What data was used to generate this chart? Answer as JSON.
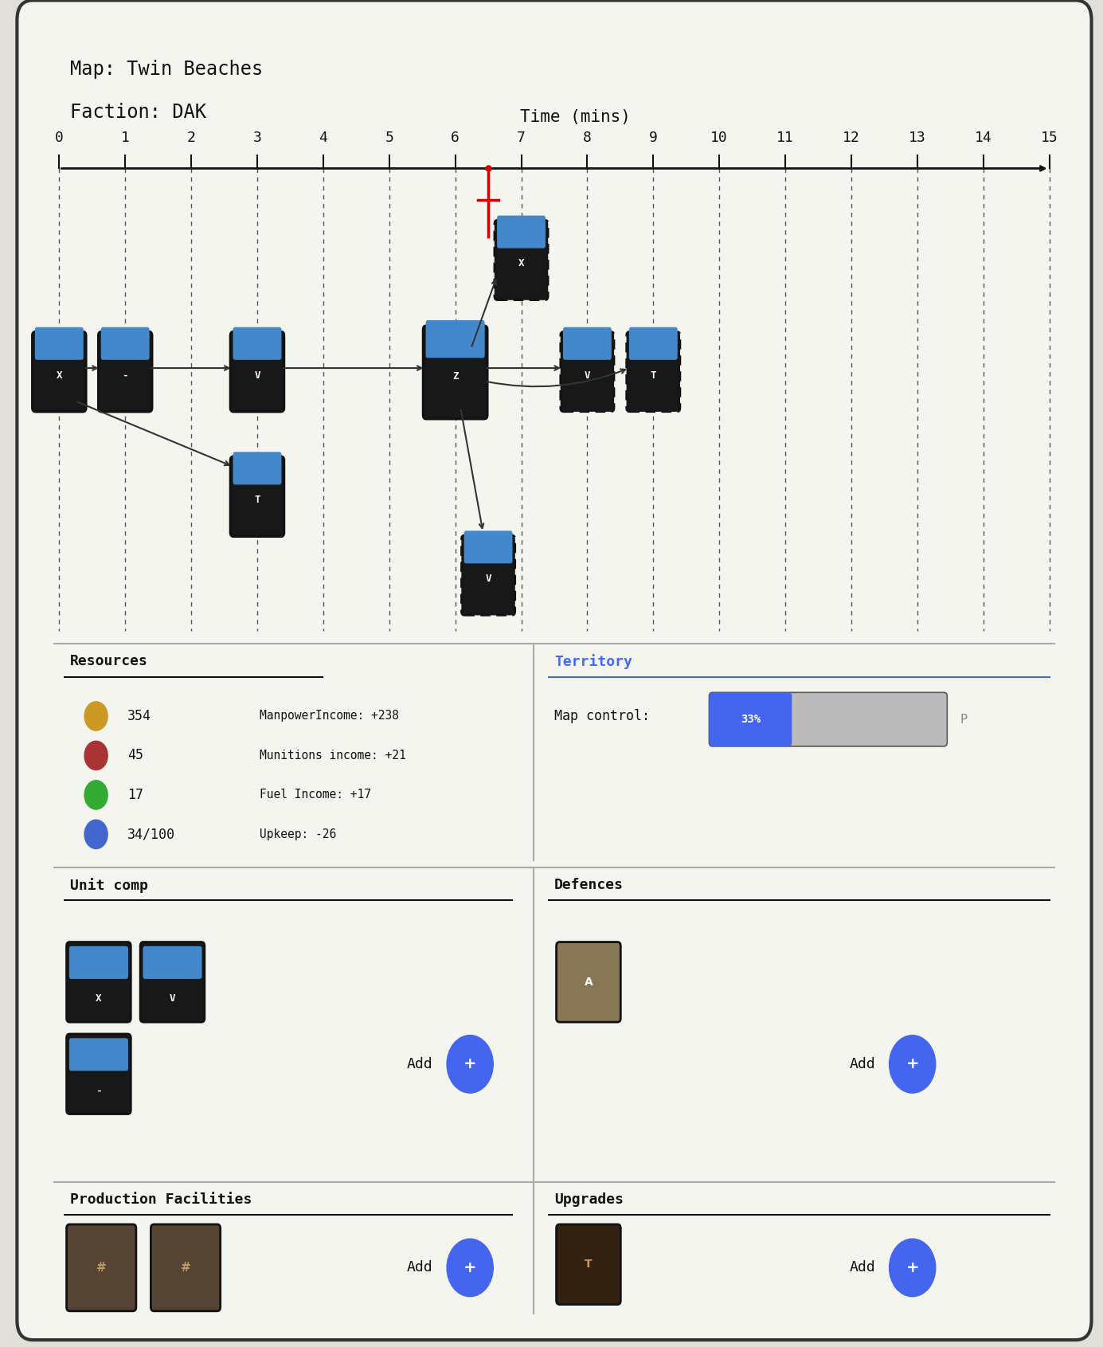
{
  "title_map": "Map: Twin Beaches",
  "title_faction": "Faction: DAK",
  "time_label": "Time (mins)",
  "time_ticks": [
    0,
    1,
    2,
    3,
    4,
    5,
    6,
    7,
    8,
    9,
    10,
    11,
    12,
    13,
    14,
    15
  ],
  "current_time": 6.5,
  "bg_color": "#f5f5f0",
  "border_color": "#333333",
  "resources": {
    "manpower": 354,
    "munitions": 45,
    "fuel": 17,
    "pop": "34/100",
    "manpower_income": "+238",
    "munitions_income": "+21",
    "fuel_income": "+17",
    "upkeep": "-26"
  },
  "territory": {
    "map_control_pct": 33
  },
  "icon_colors": [
    "#cc9922",
    "#aa3333",
    "#33aa33",
    "#4466cc"
  ],
  "territory_title_color": "#4466ff",
  "add_button_color": "#4466ee",
  "separator_color": "#aaaaaa",
  "unit_main_color": "#111111",
  "unit_top_color": "#4488cc",
  "arrow_color": "#333333"
}
